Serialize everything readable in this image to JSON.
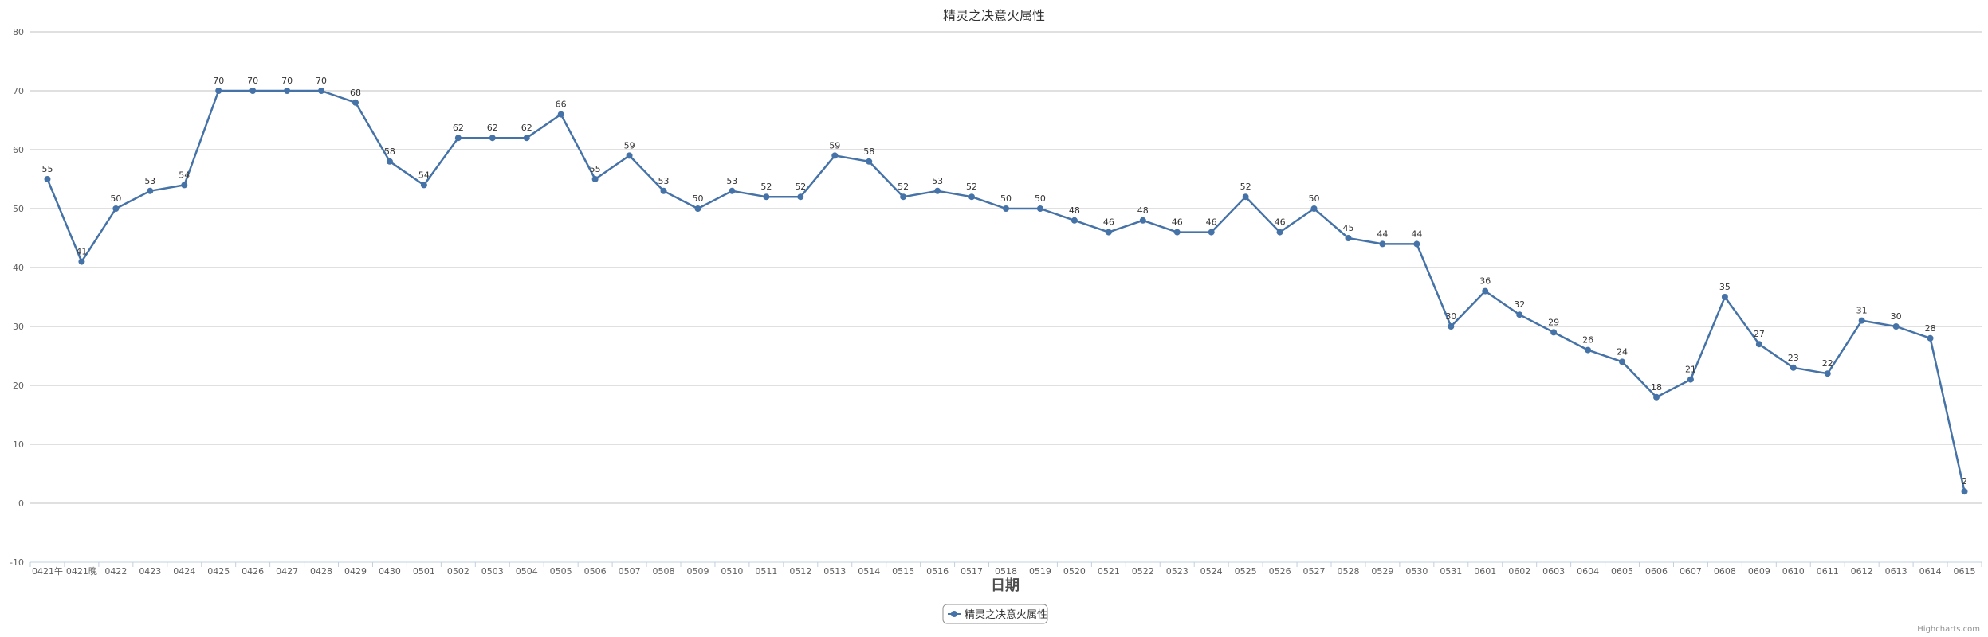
{
  "chart_data": {
    "type": "line",
    "title": "精灵之决意火属性",
    "xlabel": "日期",
    "ylabel": "",
    "ylim": [
      -10,
      80
    ],
    "yticks": [
      -10,
      0,
      10,
      20,
      30,
      40,
      50,
      60,
      70,
      80
    ],
    "grid": true,
    "legend_position": "bottom-center",
    "categories": [
      "0421午",
      "0421晚",
      "0422",
      "0423",
      "0424",
      "0425",
      "0426",
      "0427",
      "0428",
      "0429",
      "0430",
      "0501",
      "0502",
      "0503",
      "0504",
      "0505",
      "0506",
      "0507",
      "0508",
      "0509",
      "0510",
      "0511",
      "0512",
      "0513",
      "0514",
      "0515",
      "0516",
      "0517",
      "0518",
      "0519",
      "0520",
      "0521",
      "0522",
      "0523",
      "0524",
      "0525",
      "0526",
      "0527",
      "0528",
      "0529",
      "0530",
      "0531",
      "0601",
      "0602",
      "0603",
      "0604",
      "0605",
      "0606",
      "0607",
      "0608",
      "0609",
      "0610",
      "0611",
      "0612",
      "0613",
      "0614",
      "0615"
    ],
    "series": [
      {
        "name": "精灵之决意火属性",
        "color": "#4572a7",
        "values": [
          55,
          41,
          50,
          53,
          54,
          70,
          70,
          70,
          70,
          68,
          58,
          54,
          62,
          62,
          62,
          66,
          55,
          59,
          53,
          50,
          53,
          52,
          52,
          59,
          58,
          52,
          53,
          52,
          50,
          50,
          48,
          46,
          48,
          46,
          46,
          52,
          46,
          50,
          45,
          44,
          44,
          30,
          36,
          32,
          29,
          26,
          24,
          18,
          21,
          35,
          27,
          23,
          22,
          31,
          30,
          28,
          2
        ]
      }
    ]
  },
  "credit": "Highcharts.com"
}
